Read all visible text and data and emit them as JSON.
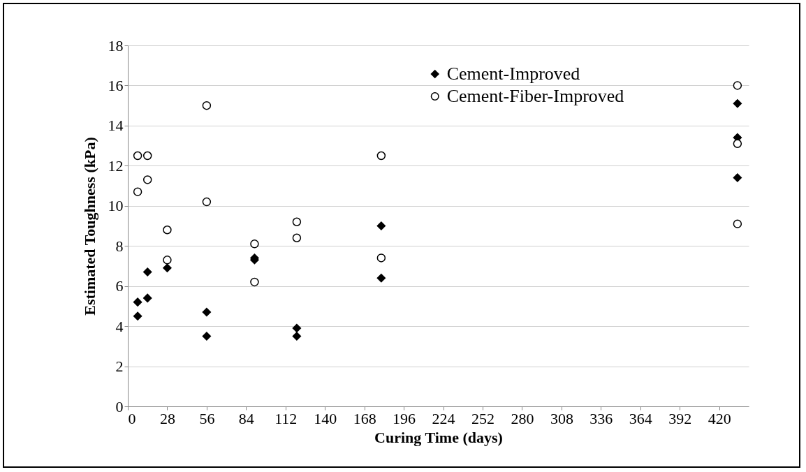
{
  "chart_data": {
    "type": "scatter",
    "xlabel": "Curing Time (days)",
    "ylabel": "Estimated Toughness (kPa)",
    "xlim": [
      0,
      441
    ],
    "xticks": [
      0,
      28,
      56,
      84,
      112,
      140,
      168,
      196,
      224,
      252,
      280,
      308,
      336,
      364,
      392,
      420
    ],
    "ylim": [
      0,
      18
    ],
    "yticks": [
      0,
      2,
      4,
      6,
      8,
      10,
      12,
      14,
      16,
      18
    ],
    "grid": "y",
    "legend": "top",
    "series": [
      {
        "name": "Cement-Improved",
        "color": "#000000",
        "marker": "diamond",
        "x": [
          7,
          7,
          14,
          14,
          28,
          56,
          56,
          90,
          90,
          120,
          120,
          180,
          180,
          433,
          433,
          433
        ],
        "values": [
          4.5,
          5.2,
          5.4,
          6.7,
          6.9,
          3.5,
          4.7,
          7.3,
          7.4,
          3.5,
          3.9,
          6.4,
          9.0,
          15.1,
          13.4,
          11.4
        ]
      },
      {
        "name": "Cement-Fiber-Improved",
        "color": "#000000",
        "marker": "circle",
        "x": [
          7,
          7,
          14,
          14,
          28,
          28,
          56,
          56,
          90,
          90,
          120,
          120,
          180,
          180,
          433,
          433,
          433
        ],
        "values": [
          12.5,
          10.7,
          12.5,
          11.3,
          8.8,
          7.3,
          15.0,
          10.2,
          8.1,
          6.2,
          9.2,
          8.4,
          12.5,
          7.4,
          16.0,
          13.1,
          9.1
        ]
      }
    ]
  }
}
